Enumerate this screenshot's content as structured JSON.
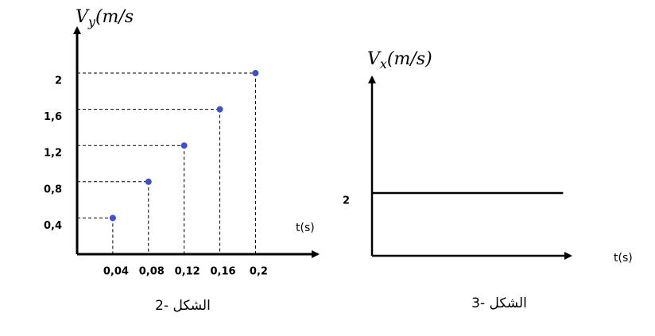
{
  "chart_data": [
    {
      "type": "scatter",
      "ylabel": {
        "symbol": "V",
        "subscript": "y",
        "unit": "(m/s"
      },
      "xlabel": "t(s)",
      "caption": "الشكل -2",
      "x": [
        0.04,
        0.08,
        0.12,
        0.16,
        0.2
      ],
      "values": [
        0.4,
        0.8,
        1.2,
        1.6,
        2
      ],
      "color": "#3f51c8",
      "xlim": [
        0,
        0.27
      ],
      "ylim": [
        0,
        2.5
      ],
      "xticks": [
        {
          "value": 0.04,
          "label": "0,04"
        },
        {
          "value": 0.08,
          "label": "0,08"
        },
        {
          "value": 0.12,
          "label": "0,12"
        },
        {
          "value": 0.16,
          "label": "0,16"
        },
        {
          "value": 0.2,
          "label": "0,2"
        }
      ],
      "yticks": [
        {
          "value": 0.4,
          "label": "0,4"
        },
        {
          "value": 0.8,
          "label": "0,8"
        },
        {
          "value": 1.2,
          "label": "1,2"
        },
        {
          "value": 1.6,
          "label": "1,6"
        },
        2
      ],
      "guides": true
    },
    {
      "type": "line",
      "ylabel": {
        "symbol": "V",
        "subscript": "x",
        "unit": "(m/s)"
      },
      "xlabel": "t(s)",
      "caption": "الشكل -3",
      "x": [
        0,
        1
      ],
      "values": [
        2,
        2
      ],
      "color": "#000000",
      "xlim": [
        0,
        1.04
      ],
      "ylim": [
        0,
        5.7
      ],
      "yticks": [
        2
      ],
      "guides": false
    }
  ]
}
